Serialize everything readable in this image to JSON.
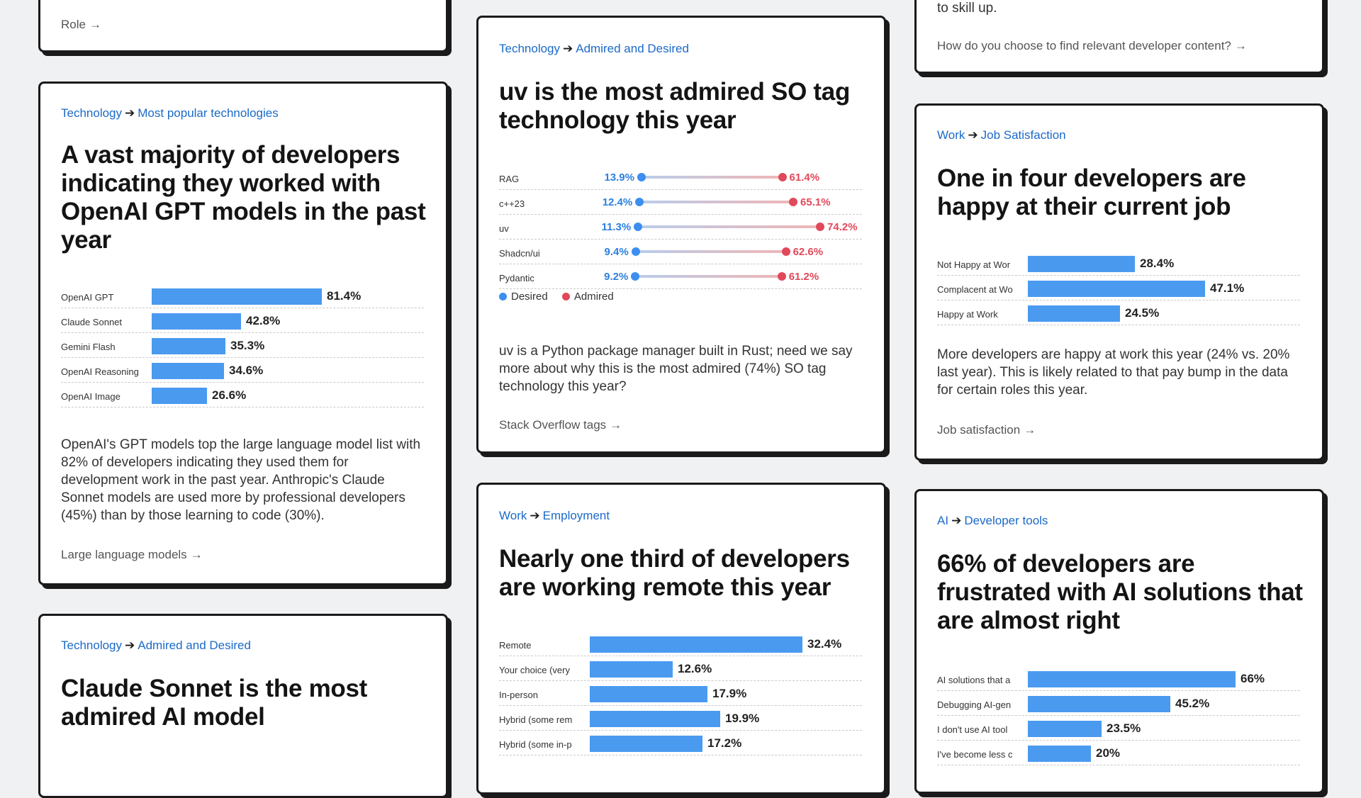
{
  "cards": {
    "role_card": {
      "link": "Role"
    },
    "llm_card": {
      "crumb_section": "Technology",
      "crumb_page": "Most popular technologies",
      "title": "A vast majority of developers indicating they worked with OpenAI GPT models in the past year",
      "description": "OpenAI's GPT models top the large language model list with 82% of developers indicating they used them for development work in the past year. Anthropic's Claude Sonnet models are used more by professional developers (45%) than by those learning to code (30%).",
      "link": "Large language models"
    },
    "claude_card": {
      "crumb_section": "Technology",
      "crumb_page": "Admired and Desired",
      "title": "Claude Sonnet is the most admired AI model"
    },
    "uv_card": {
      "crumb_section": "Technology",
      "crumb_page": "Admired and Desired",
      "title": "uv is the most admired SO tag technology this year",
      "legend_desired": "Desired",
      "legend_admired": "Admired",
      "description": "uv is a Python package manager built in Rust; need we say more about why this is the most admired (74%) SO tag technology this year?",
      "link": "Stack Overflow tags"
    },
    "remote_card": {
      "crumb_section": "Work",
      "crumb_page": "Employment",
      "title": "Nearly one third of developers are working remote this year"
    },
    "skill_card": {
      "text_top": "to skill up.",
      "link": "How do you choose to find relevant developer content?"
    },
    "job_card": {
      "crumb_section": "Work",
      "crumb_page": "Job Satisfaction",
      "title": "One in four developers are happy at their current job",
      "description": "More developers are happy at work this year (24% vs. 20% last year). This is likely related to that pay bump in the data for certain roles this year.",
      "link": "Job satisfaction"
    },
    "ai_card": {
      "crumb_section": "AI",
      "crumb_page": "Developer tools",
      "title": "66% of developers are frustrated with AI solutions that are almost right"
    }
  },
  "chart_data": [
    {
      "type": "bar",
      "categories": [
        "OpenAI GPT",
        "Claude Sonnet",
        "Gemini Flash",
        "OpenAI Reasoning",
        "OpenAI Image"
      ],
      "values": [
        81.4,
        42.8,
        35.3,
        34.6,
        26.6
      ],
      "value_labels": [
        "81.4%",
        "42.8%",
        "35.3%",
        "34.6%",
        "26.6%"
      ],
      "unit": "%"
    },
    {
      "type": "dumbbell",
      "categories": [
        "RAG",
        "c++23",
        "uv",
        "Shadcn/ui",
        "Pydantic"
      ],
      "series": [
        {
          "name": "Desired",
          "values": [
            13.9,
            12.4,
            11.3,
            9.4,
            9.2
          ],
          "labels": [
            "13.9%",
            "12.4%",
            "11.3%",
            "9.4%",
            "9.2%"
          ],
          "color": "#3c8ef0"
        },
        {
          "name": "Admired",
          "values": [
            61.4,
            65.1,
            74.2,
            62.6,
            61.2
          ],
          "labels": [
            "61.4%",
            "65.1%",
            "74.2%",
            "62.6%",
            "61.2%"
          ],
          "color": "#e0495a"
        }
      ],
      "unit": "%"
    },
    {
      "type": "bar",
      "categories": [
        "Remote",
        "Your choice (very flexible)",
        "In-person",
        "Hybrid (some remote, mostly in-person)",
        "Hybrid (some in-person, mostly remote)"
      ],
      "display_categories": [
        "Remote",
        "Your choice (very",
        "In-person",
        "Hybrid (some rem",
        "Hybrid (some in-p"
      ],
      "values": [
        32.4,
        12.6,
        17.9,
        19.9,
        17.2
      ],
      "value_labels": [
        "32.4%",
        "12.6%",
        "17.9%",
        "19.9%",
        "17.2%"
      ],
      "unit": "%"
    },
    {
      "type": "bar",
      "categories": [
        "Not Happy at Work",
        "Complacent at Work",
        "Happy at Work"
      ],
      "display_categories": [
        "Not Happy at Wor",
        "Complacent at Wo",
        "Happy at Work"
      ],
      "values": [
        28.4,
        47.1,
        24.5
      ],
      "value_labels": [
        "28.4%",
        "47.1%",
        "24.5%"
      ],
      "unit": "%"
    },
    {
      "type": "bar",
      "categories": [
        "AI solutions that are almost right",
        "Debugging AI-generated code",
        "I don't use AI tools",
        "I've become less confident"
      ],
      "display_categories": [
        "AI solutions that a",
        "Debugging AI-gen",
        "I don't use AI tool",
        "I've become less c"
      ],
      "values": [
        66,
        45.2,
        23.5,
        20
      ],
      "value_labels": [
        "66%",
        "45.2%",
        "23.5%",
        "20%"
      ],
      "unit": "%"
    }
  ],
  "colors": {
    "bar": "#4a9af0",
    "link": "#1b6ac9",
    "desired": "#3c8ef0",
    "admired": "#e0495a"
  }
}
